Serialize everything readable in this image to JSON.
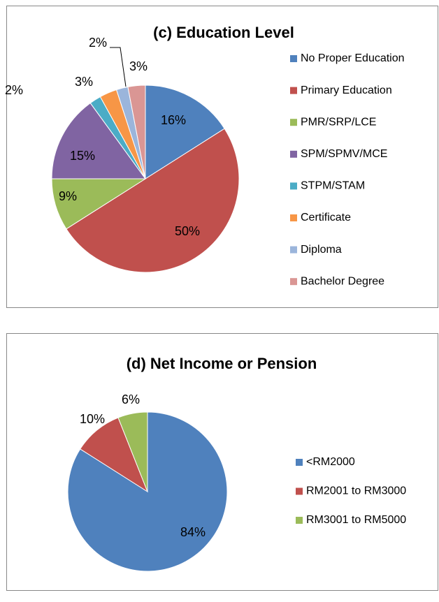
{
  "chart_data": [
    {
      "type": "pie",
      "title": "(c) Education Level",
      "categories": [
        "No Proper Education",
        "Primary Education",
        "PMR/SRP/LCE",
        "SPM/SPMV/MCE",
        "STPM/STAM",
        "Certificate",
        "Diploma",
        "Bachelor Degree"
      ],
      "values": [
        16,
        50,
        9,
        15,
        2,
        3,
        2,
        3
      ],
      "value_labels": [
        "16%",
        "50%",
        "9%",
        "15%",
        "2%",
        "3%",
        "2%",
        "3%"
      ],
      "colors": [
        "#4f81bd",
        "#c0504d",
        "#9bbb59",
        "#8064a2",
        "#4bacc6",
        "#f79646",
        "#9bb5db",
        "#da9694"
      ],
      "legend": "right"
    },
    {
      "type": "pie",
      "title": "(d) Net Income or Pension",
      "categories": [
        "<RM2000",
        "RM2001 to RM3000",
        "RM3001 to RM5000"
      ],
      "values": [
        84,
        10,
        6
      ],
      "value_labels": [
        "84%",
        "10%",
        "6%"
      ],
      "colors": [
        "#4f81bd",
        "#c0504d",
        "#9bbb59"
      ],
      "legend": "right"
    }
  ]
}
